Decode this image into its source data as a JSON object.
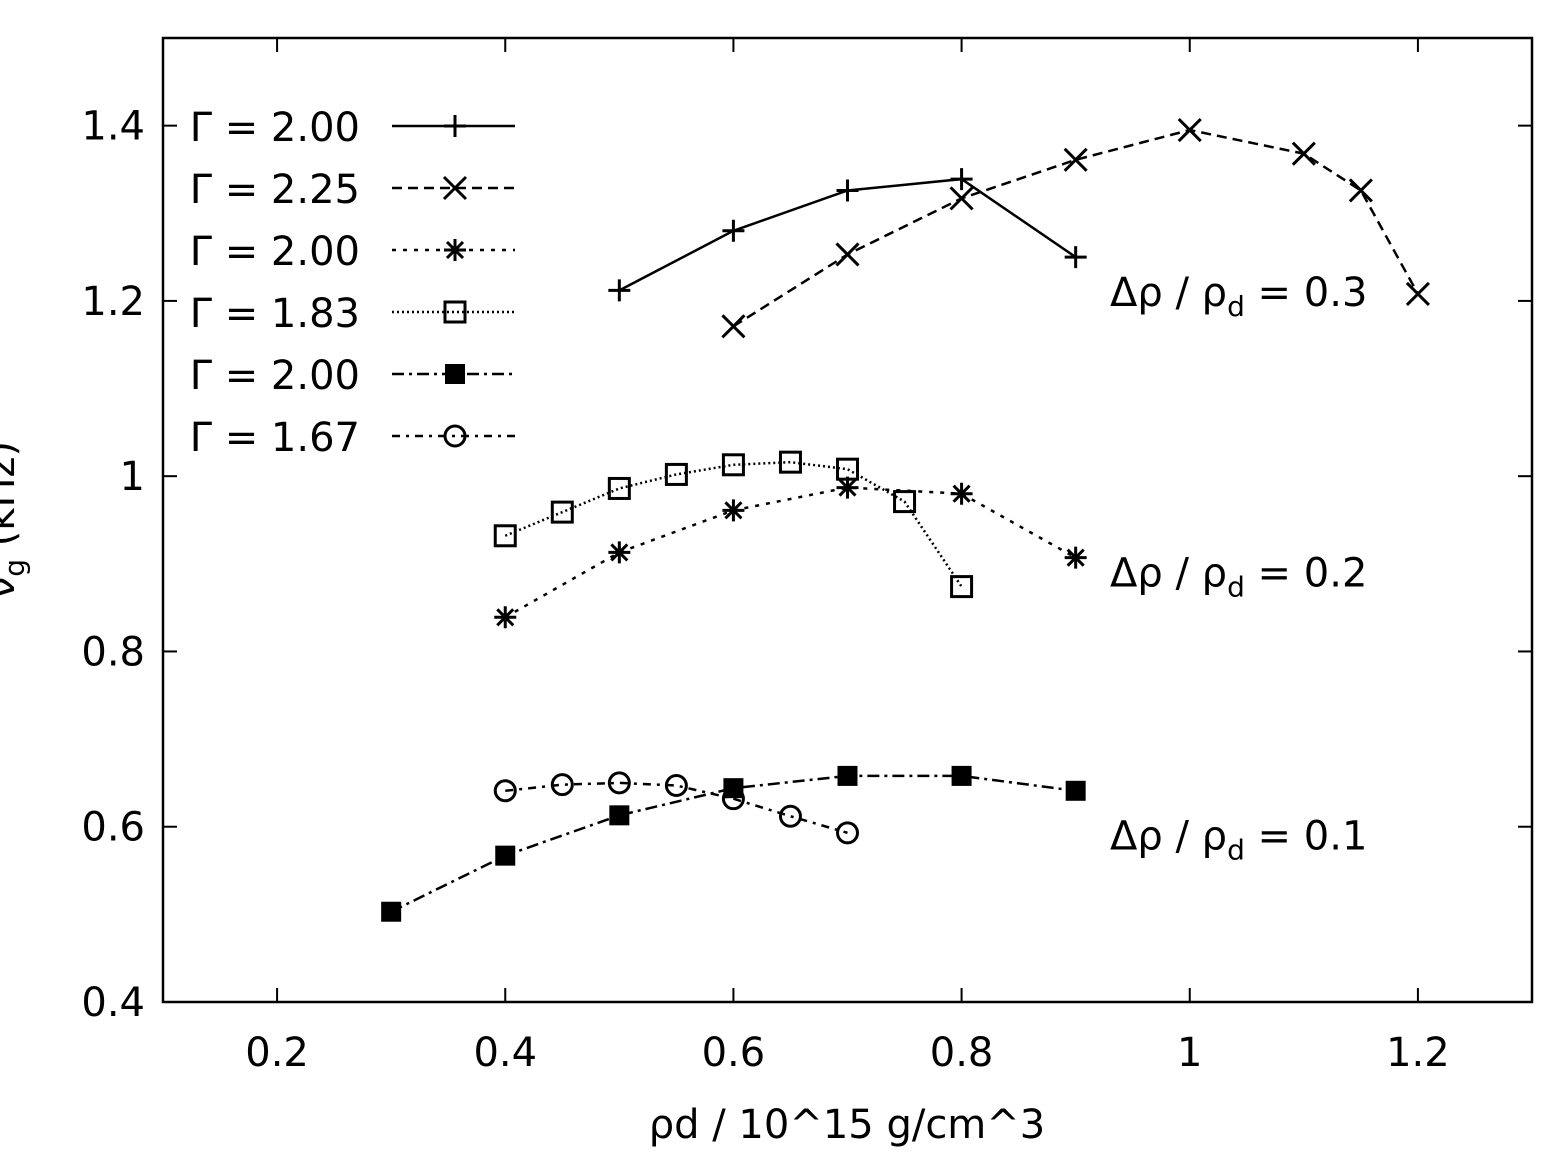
{
  "chart_data": {
    "type": "line",
    "title": "",
    "xlabel": "ρd / 10^15 g/cm^3",
    "xlabel_parts": {
      "rho": "ρ",
      "sub": "d",
      "mid": " / 10",
      "sup": "15",
      "unit": " g/cm",
      "sup2": "3"
    },
    "ylabel_parts": {
      "nu": "ν",
      "sub": "g",
      "rest": "  (kHz)"
    },
    "xlim": [
      0.1,
      1.3
    ],
    "ylim": [
      0.4,
      1.5
    ],
    "xticks": [
      "0.2",
      "0.4",
      "0.6",
      "0.8",
      "1",
      "1.2"
    ],
    "xtick_values": [
      0.2,
      0.4,
      0.6,
      0.8,
      1.0,
      1.2
    ],
    "yticks": [
      "0.4",
      "0.6",
      "0.8",
      "1",
      "1.2",
      "1.4"
    ],
    "ytick_values": [
      0.4,
      0.6,
      0.8,
      1.0,
      1.2,
      1.4
    ],
    "grid": false,
    "legend_position": "top-left",
    "series": [
      {
        "name": "Γ = 2.00",
        "marker": "plus",
        "line": "solid",
        "x": [
          0.5,
          0.6,
          0.7,
          0.8,
          0.9
        ],
        "y": [
          1.212,
          1.28,
          1.326,
          1.339,
          1.25
        ]
      },
      {
        "name": "Γ = 2.25",
        "marker": "cross",
        "line": "dashed",
        "x": [
          0.6,
          0.7,
          0.8,
          0.9,
          1.0,
          1.1,
          1.15,
          1.2
        ],
        "y": [
          1.171,
          1.253,
          1.317,
          1.361,
          1.395,
          1.368,
          1.326,
          1.208
        ]
      },
      {
        "name": "Γ = 2.00",
        "marker": "star",
        "line": "dotted",
        "x": [
          0.4,
          0.5,
          0.6,
          0.7,
          0.8,
          0.9
        ],
        "y": [
          0.839,
          0.913,
          0.961,
          0.987,
          0.98,
          0.907
        ]
      },
      {
        "name": "Γ = 1.83",
        "marker": "open-square",
        "line": "fine-dotted",
        "x": [
          0.4,
          0.45,
          0.5,
          0.55,
          0.6,
          0.65,
          0.7,
          0.75,
          0.8
        ],
        "y": [
          0.932,
          0.959,
          0.986,
          1.002,
          1.013,
          1.016,
          1.008,
          0.971,
          0.874
        ]
      },
      {
        "name": "Γ = 2.00",
        "marker": "filled-square",
        "line": "dash-dot",
        "x": [
          0.3,
          0.4,
          0.5,
          0.6,
          0.7,
          0.8,
          0.9
        ],
        "y": [
          0.503,
          0.567,
          0.613,
          0.644,
          0.658,
          0.658,
          0.641
        ]
      },
      {
        "name": "Γ = 1.67",
        "marker": "open-circle",
        "line": "dash-dot-dot",
        "x": [
          0.4,
          0.45,
          0.5,
          0.55,
          0.6,
          0.65,
          0.7
        ],
        "y": [
          0.641,
          0.648,
          0.65,
          0.647,
          0.632,
          0.612,
          0.593
        ]
      }
    ],
    "annotations": [
      {
        "pre": "Δρ / ρ",
        "sub": "d",
        "post": " = 0.3",
        "x": 1.16,
        "y": 1.21
      },
      {
        "pre": "Δρ / ρ",
        "sub": "d",
        "post": " = 0.2",
        "x": 1.16,
        "y": 0.89
      },
      {
        "pre": "Δρ / ρ",
        "sub": "d",
        "post": " = 0.1",
        "x": 1.16,
        "y": 0.59
      }
    ]
  }
}
